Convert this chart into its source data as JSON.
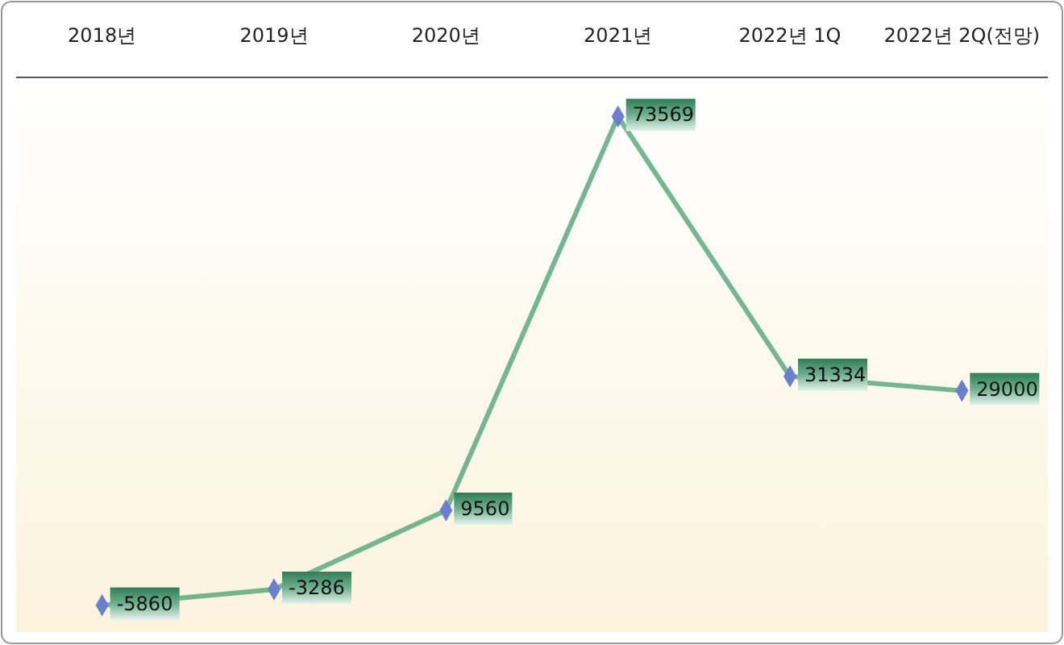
{
  "chart_data": {
    "type": "line",
    "categories": [
      "2018년",
      "2019년",
      "2020년",
      "2021년",
      "2022년 1Q",
      "2022년 2Q(전망)"
    ],
    "series": [
      {
        "color": "#5aaa80",
        "values": [
          -5860,
          -3286,
          9560,
          73569,
          31334,
          29000
        ]
      }
    ],
    "data_labels": true,
    "marker": "diamond",
    "line_style": "solid"
  }
}
